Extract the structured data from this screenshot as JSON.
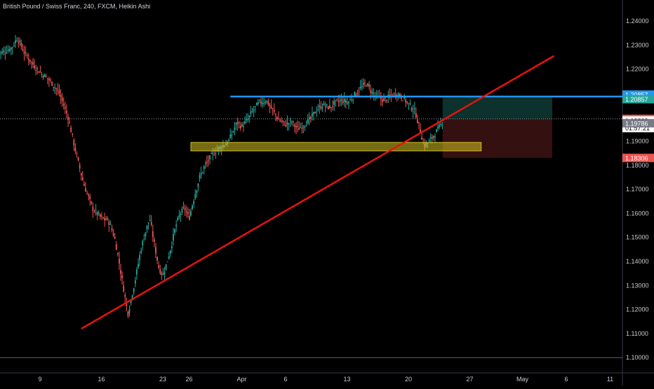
{
  "header": {
    "title": "British Pound / Swiss Franc, 240, FXCM, Heikin Ashi"
  },
  "colors": {
    "bull": "#26a69a",
    "bear": "#ef5350",
    "trendline": "#e8120f",
    "resistance": "#2196f3",
    "support_zone": "#d4c224",
    "axis_text": "#c9cbd1",
    "grid": "#2a2e39"
  },
  "chart_data": {
    "type": "candlestick",
    "title": "British Pound / Swiss Franc, 240, FXCM, Heikin Ashi",
    "ylim": [
      1.1,
      1.245
    ],
    "y_ticks": [
      "1.24000",
      "1.23000",
      "1.22000",
      "1.21000",
      "1.20000",
      "1.19000",
      "1.18000",
      "1.17000",
      "1.16000",
      "1.15000",
      "1.14000",
      "1.13000",
      "1.12000",
      "1.11000",
      "1.10000"
    ],
    "x_ticks": [
      {
        "label": "9",
        "x": 9
      },
      {
        "label": "16",
        "x": 16
      },
      {
        "label": "23",
        "x": 23
      },
      {
        "label": "26",
        "x": 26
      },
      {
        "label": "Apr",
        "x": 32
      },
      {
        "label": "6",
        "x": 37
      },
      {
        "label": "13",
        "x": 44
      },
      {
        "label": "20",
        "x": 51
      },
      {
        "label": "27",
        "x": 58
      },
      {
        "label": "May",
        "x": 64
      },
      {
        "label": "6",
        "x": 69
      },
      {
        "label": "11",
        "x": 74
      }
    ],
    "xlim": [
      4.2,
      78.5
    ],
    "price_path": [
      [
        4.2,
        1.226
      ],
      [
        5.8,
        1.229
      ],
      [
        6.4,
        1.233
      ],
      [
        7.2,
        1.227
      ],
      [
        8.2,
        1.222
      ],
      [
        9.2,
        1.218
      ],
      [
        10.2,
        1.215
      ],
      [
        11.2,
        1.21
      ],
      [
        12.2,
        1.2
      ],
      [
        12.8,
        1.19
      ],
      [
        13.3,
        1.182
      ],
      [
        14,
        1.172
      ],
      [
        15,
        1.162
      ],
      [
        16,
        1.158
      ],
      [
        16.8,
        1.157
      ],
      [
        17.5,
        1.15
      ],
      [
        18,
        1.14
      ],
      [
        18.7,
        1.125
      ],
      [
        19,
        1.118
      ],
      [
        19.6,
        1.128
      ],
      [
        20,
        1.135
      ],
      [
        20.5,
        1.145
      ],
      [
        21,
        1.152
      ],
      [
        21.5,
        1.158
      ],
      [
        22,
        1.148
      ],
      [
        22.5,
        1.138
      ],
      [
        23,
        1.134
      ],
      [
        23.5,
        1.14
      ],
      [
        24,
        1.147
      ],
      [
        24.5,
        1.155
      ],
      [
        25,
        1.16
      ],
      [
        25.5,
        1.162
      ],
      [
        26,
        1.158
      ],
      [
        26.6,
        1.167
      ],
      [
        27.2,
        1.175
      ],
      [
        27.8,
        1.18
      ],
      [
        28.4,
        1.183
      ],
      [
        29,
        1.186
      ],
      [
        29.8,
        1.188
      ],
      [
        30.5,
        1.19
      ],
      [
        31,
        1.194
      ],
      [
        31.5,
        1.198
      ],
      [
        32,
        1.196
      ],
      [
        32.7,
        1.199
      ],
      [
        33.3,
        1.203
      ],
      [
        34,
        1.206
      ],
      [
        34.8,
        1.207
      ],
      [
        35.5,
        1.203
      ],
      [
        36.2,
        1.199
      ],
      [
        37,
        1.197
      ],
      [
        37.7,
        1.198
      ],
      [
        38.4,
        1.195
      ],
      [
        39.1,
        1.197
      ],
      [
        39.8,
        1.199
      ],
      [
        40.5,
        1.203
      ],
      [
        41.2,
        1.205
      ],
      [
        42,
        1.204
      ],
      [
        42.7,
        1.206
      ],
      [
        43.4,
        1.207
      ],
      [
        44.1,
        1.206
      ],
      [
        44.8,
        1.209
      ],
      [
        45.5,
        1.212
      ],
      [
        46.2,
        1.214
      ],
      [
        46.9,
        1.21
      ],
      [
        47.6,
        1.208
      ],
      [
        48.3,
        1.207
      ],
      [
        49,
        1.209
      ],
      [
        49.7,
        1.21
      ],
      [
        50.4,
        1.208
      ],
      [
        51.1,
        1.205
      ],
      [
        51.8,
        1.202
      ],
      [
        52.3,
        1.195
      ],
      [
        52.8,
        1.188
      ],
      [
        53.4,
        1.19
      ],
      [
        54,
        1.193
      ],
      [
        54.6,
        1.196
      ],
      [
        55,
        1.199
      ]
    ],
    "annotations": {
      "trendline": {
        "from": [
          13.7,
          1.112
        ],
        "to": [
          67.6,
          1.2255
        ]
      },
      "resistance": {
        "from": [
          30.7,
          1.20857
        ],
        "to": [
          78.5,
          1.20857
        ],
        "label": "1.20857"
      },
      "support_zone": {
        "x": [
          26.2,
          59.3
        ],
        "y": [
          1.186,
          1.1895
        ]
      },
      "position_profit": {
        "x": [
          54.9,
          67.4
        ],
        "y": [
          1.19928,
          1.20857
        ]
      },
      "position_loss": {
        "x": [
          54.9,
          67.4
        ],
        "y": [
          1.18306,
          1.19928
        ]
      },
      "current_price": 1.19928
    },
    "price_labels": [
      {
        "text": "1.20857",
        "y": 1.2094,
        "color": "#2196f3"
      },
      {
        "text": "1.20857",
        "y": 1.2075,
        "color": "#26a69a"
      },
      {
        "text": "1.19928",
        "y": 1.19928,
        "color": "#ef5350"
      },
      {
        "text": "1.19863",
        "y": 1.19863,
        "color": "#ffffff"
      },
      {
        "text": "01:57:21",
        "y": 1.1955,
        "color": "#ffffff"
      },
      {
        "text": "1.19786",
        "y": 1.1975,
        "color": "#787b86"
      },
      {
        "text": "1.18306",
        "y": 1.18306,
        "color": "#ef5350"
      }
    ]
  }
}
